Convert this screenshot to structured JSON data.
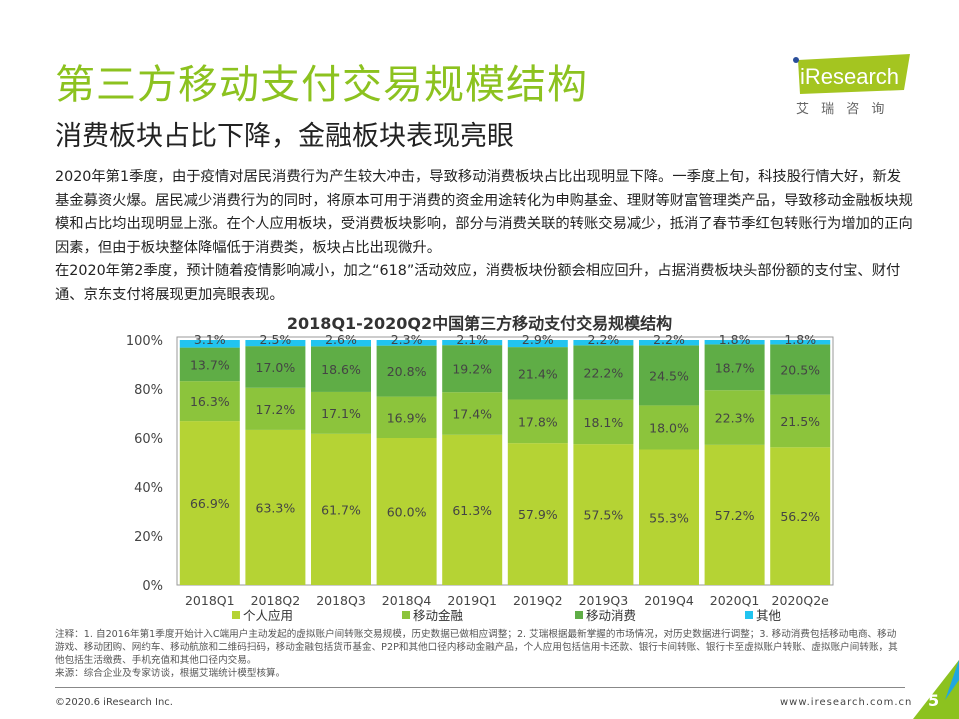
{
  "header": {
    "title": "第三方移动支付交易规模结构",
    "subtitle": "消费板块占比下降，金融板块表现亮眼"
  },
  "logo": {
    "text": "iResearch",
    "cn": "艾 瑞 咨 询"
  },
  "body": [
    "2020年第1季度，由于疫情对居民消费行为产生较大冲击，导致移动消费板块占比出现明显下降。一季度上旬，科技股行情大好，新发基金募资火爆。居民减少消费行为的同时，将原本可用于消费的资金用途转化为申购基金、理财等财富管理类产品，导致移动金融板块规模和占比均出现明显上涨。在个人应用板块，受消费板块影响，部分与消费关联的转账交易减少，抵消了春节季红包转账行为增加的正向因素，但由于板块整体降幅低于消费类，板块占比出现微升。",
    "在2020年第2季度，预计随着疫情影响减小，加之“618”活动效应，消费板块份额会相应回升，占据消费板块头部份额的支付宝、财付通、京东支付将展现更加亮眼表现。"
  ],
  "chart_data": {
    "type": "bar",
    "stacked": true,
    "title": "2018Q1-2020Q2中国第三方移动支付交易规模结构",
    "categories": [
      "2018Q1",
      "2018Q2",
      "2018Q3",
      "2018Q4",
      "2019Q1",
      "2019Q2",
      "2019Q3",
      "2019Q4",
      "2020Q1",
      "2020Q2e"
    ],
    "yticks": [
      "0%",
      "20%",
      "40%",
      "60%",
      "80%",
      "100%"
    ],
    "ylim": [
      0,
      100
    ],
    "legend_position": "bottom",
    "series": [
      {
        "name": "个人应用",
        "color": "#b5d334",
        "values": [
          66.9,
          63.3,
          61.7,
          60.0,
          61.3,
          57.9,
          57.5,
          55.3,
          57.2,
          56.2
        ]
      },
      {
        "name": "移动金融",
        "color": "#8cc43c",
        "values": [
          16.3,
          17.2,
          17.1,
          16.9,
          17.4,
          17.8,
          18.1,
          18.0,
          22.3,
          21.5
        ]
      },
      {
        "name": "移动消费",
        "color": "#5fad46",
        "values": [
          13.7,
          17.0,
          18.6,
          20.8,
          19.2,
          21.4,
          22.2,
          24.5,
          18.7,
          20.5
        ]
      },
      {
        "name": "其他",
        "color": "#21c4f0",
        "values": [
          3.1,
          2.5,
          2.6,
          2.3,
          2.1,
          2.9,
          2.2,
          2.2,
          1.8,
          1.8
        ]
      }
    ]
  },
  "notes": [
    "注释：1. 自2016年第1季度开始计入C端用户主动发起的虚拟账户间转账交易规模，历史数据已做相应调整；2. 艾瑞根据最新掌握的市场情况，对历史数据进行调整；3. 移动消费包括移动电商、移动游戏、移动团购、网约车、移动航旅和二维码扫码，移动金融包括货币基金、P2P和其他口径内移动金融产品，个人应用包括信用卡还款、银行卡间转账、银行卡至虚拟账户转账、虚拟账户间转账，其他包括生活缴费、手机充值和其他口径内交易。",
    "来源：综合企业及专家访谈，根据艾瑞统计模型核算。"
  ],
  "footer": {
    "copyright": "©2020.6 iResearch Inc.",
    "site": "www.iresearch.com.cn",
    "page": "5"
  }
}
